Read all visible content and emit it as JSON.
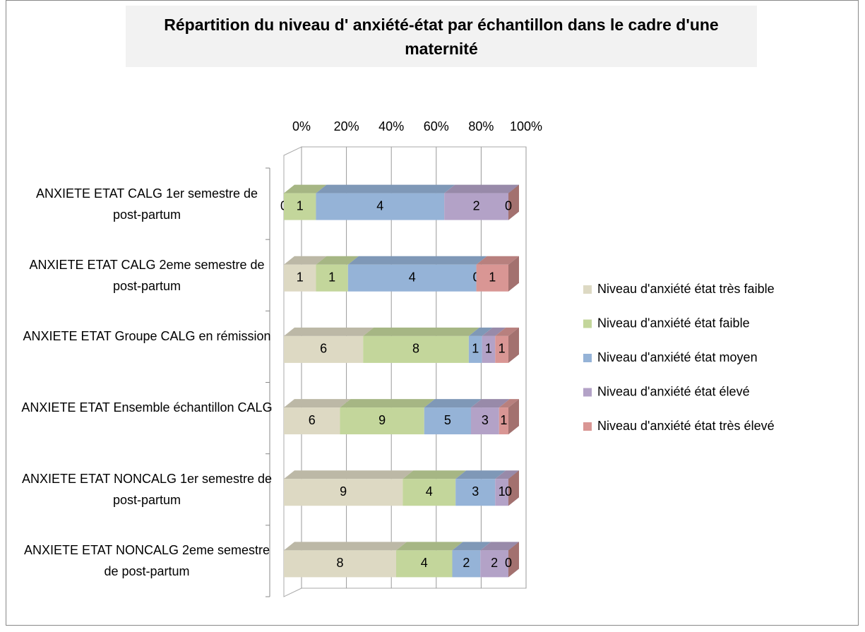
{
  "chart_data": {
    "type": "bar",
    "title": "Répartition du niveau d' anxiété-état par échantillon dans le cadre d'une maternité",
    "orientation": "horizontal",
    "stacking": "percent",
    "categories": [
      "ANXIETE ETAT CALG 1er semestre de post-partum",
      "ANXIETE ETAT CALG 2eme semestre de post-partum",
      "ANXIETE ETAT Groupe CALG en rémission",
      "ANXIETE ETAT Ensemble échantillon CALG",
      "ANXIETE ETAT NONCALG 1er semestre de post-partum",
      "ANXIETE ETAT NONCALG 2eme semestre de post-partum"
    ],
    "series": [
      {
        "name": "Niveau d'anxiété état très faible",
        "color": "#ddd9c3",
        "values": [
          0,
          1,
          6,
          6,
          9,
          8
        ]
      },
      {
        "name": "Niveau d'anxiété état faible",
        "color": "#c3d69b",
        "values": [
          1,
          1,
          8,
          9,
          4,
          4
        ]
      },
      {
        "name": "Niveau d'anxiété état moyen",
        "color": "#95b3d7",
        "values": [
          4,
          4,
          1,
          5,
          3,
          2
        ]
      },
      {
        "name": "Niveau d'anxiété état élevé",
        "color": "#b3a2c7",
        "values": [
          2,
          0,
          1,
          3,
          1,
          2
        ]
      },
      {
        "name": "Niveau d'anxiété état très élevé",
        "color": "#d99694",
        "values": [
          0,
          1,
          1,
          1,
          0,
          0
        ]
      }
    ],
    "xlim": [
      0,
      100
    ],
    "xticks": [
      {
        "value": 0,
        "label": "0%"
      },
      {
        "value": 20,
        "label": "20%"
      },
      {
        "value": 40,
        "label": "40%"
      },
      {
        "value": 60,
        "label": "60%"
      },
      {
        "value": 80,
        "label": "80%"
      },
      {
        "value": 100,
        "label": "100%"
      }
    ],
    "grid": true,
    "legend": "right"
  }
}
